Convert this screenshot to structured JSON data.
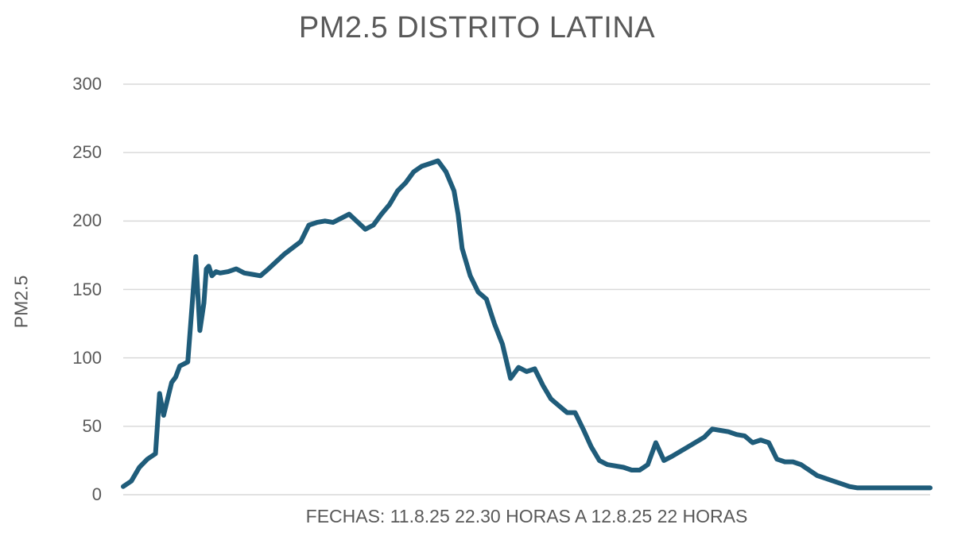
{
  "chart_data": {
    "type": "line",
    "title": "PM2.5 DISTRITO LATINA",
    "xlabel": "FECHAS: 11.8.25 22.30 HORAS A 12.8.25 22 HORAS",
    "ylabel": "PM2.5",
    "ylim": [
      0,
      300
    ],
    "yticks": [
      0,
      50,
      100,
      150,
      200,
      250,
      300
    ],
    "grid": true,
    "legend": null,
    "line_color": "#1f5c7a",
    "series": [
      {
        "name": "PM2.5",
        "x_index_range": [
          0,
          1
        ],
        "points_x_fraction": [
          0,
          0.01,
          0.02,
          0.03,
          0.04,
          0.045,
          0.05,
          0.055,
          0.06,
          0.065,
          0.07,
          0.08,
          0.09,
          0.095,
          0.1,
          0.103,
          0.106,
          0.11,
          0.115,
          0.12,
          0.13,
          0.14,
          0.15,
          0.16,
          0.17,
          0.18,
          0.2,
          0.22,
          0.23,
          0.24,
          0.25,
          0.26,
          0.28,
          0.3,
          0.31,
          0.32,
          0.33,
          0.34,
          0.35,
          0.36,
          0.37,
          0.38,
          0.39,
          0.4,
          0.41,
          0.415,
          0.42,
          0.43,
          0.44,
          0.45,
          0.46,
          0.47,
          0.48,
          0.49,
          0.5,
          0.51,
          0.52,
          0.53,
          0.54,
          0.55,
          0.56,
          0.57,
          0.58,
          0.59,
          0.6,
          0.62,
          0.63,
          0.64,
          0.65,
          0.66,
          0.67,
          0.68,
          0.7,
          0.72,
          0.73,
          0.74,
          0.75,
          0.76,
          0.77,
          0.78,
          0.79,
          0.8,
          0.81,
          0.82,
          0.83,
          0.84,
          0.85,
          0.86,
          0.87,
          0.88,
          0.89,
          0.9,
          0.91,
          0.92,
          0.93,
          0.94,
          0.95,
          0.96,
          0.97,
          0.98,
          0.99,
          1.0
        ],
        "values": [
          6,
          10,
          20,
          26,
          30,
          74,
          58,
          70,
          82,
          86,
          94,
          97,
          174,
          120,
          140,
          165,
          167,
          160,
          163,
          162,
          163,
          165,
          162,
          161,
          160,
          165,
          176,
          185,
          197,
          199,
          200,
          199,
          205,
          194,
          197,
          205,
          212,
          222,
          228,
          236,
          240,
          242,
          244,
          236,
          222,
          205,
          180,
          160,
          148,
          143,
          125,
          110,
          85,
          93,
          90,
          92,
          80,
          70,
          65,
          60,
          60,
          48,
          35,
          25,
          22,
          20,
          18,
          18,
          22,
          38,
          25,
          28,
          35,
          42,
          48,
          47,
          46,
          44,
          43,
          38,
          40,
          38,
          26,
          24,
          24,
          22,
          18,
          14,
          12,
          10,
          8,
          6,
          5,
          5,
          5,
          5,
          5,
          5,
          5,
          5,
          5,
          5
        ]
      }
    ]
  }
}
